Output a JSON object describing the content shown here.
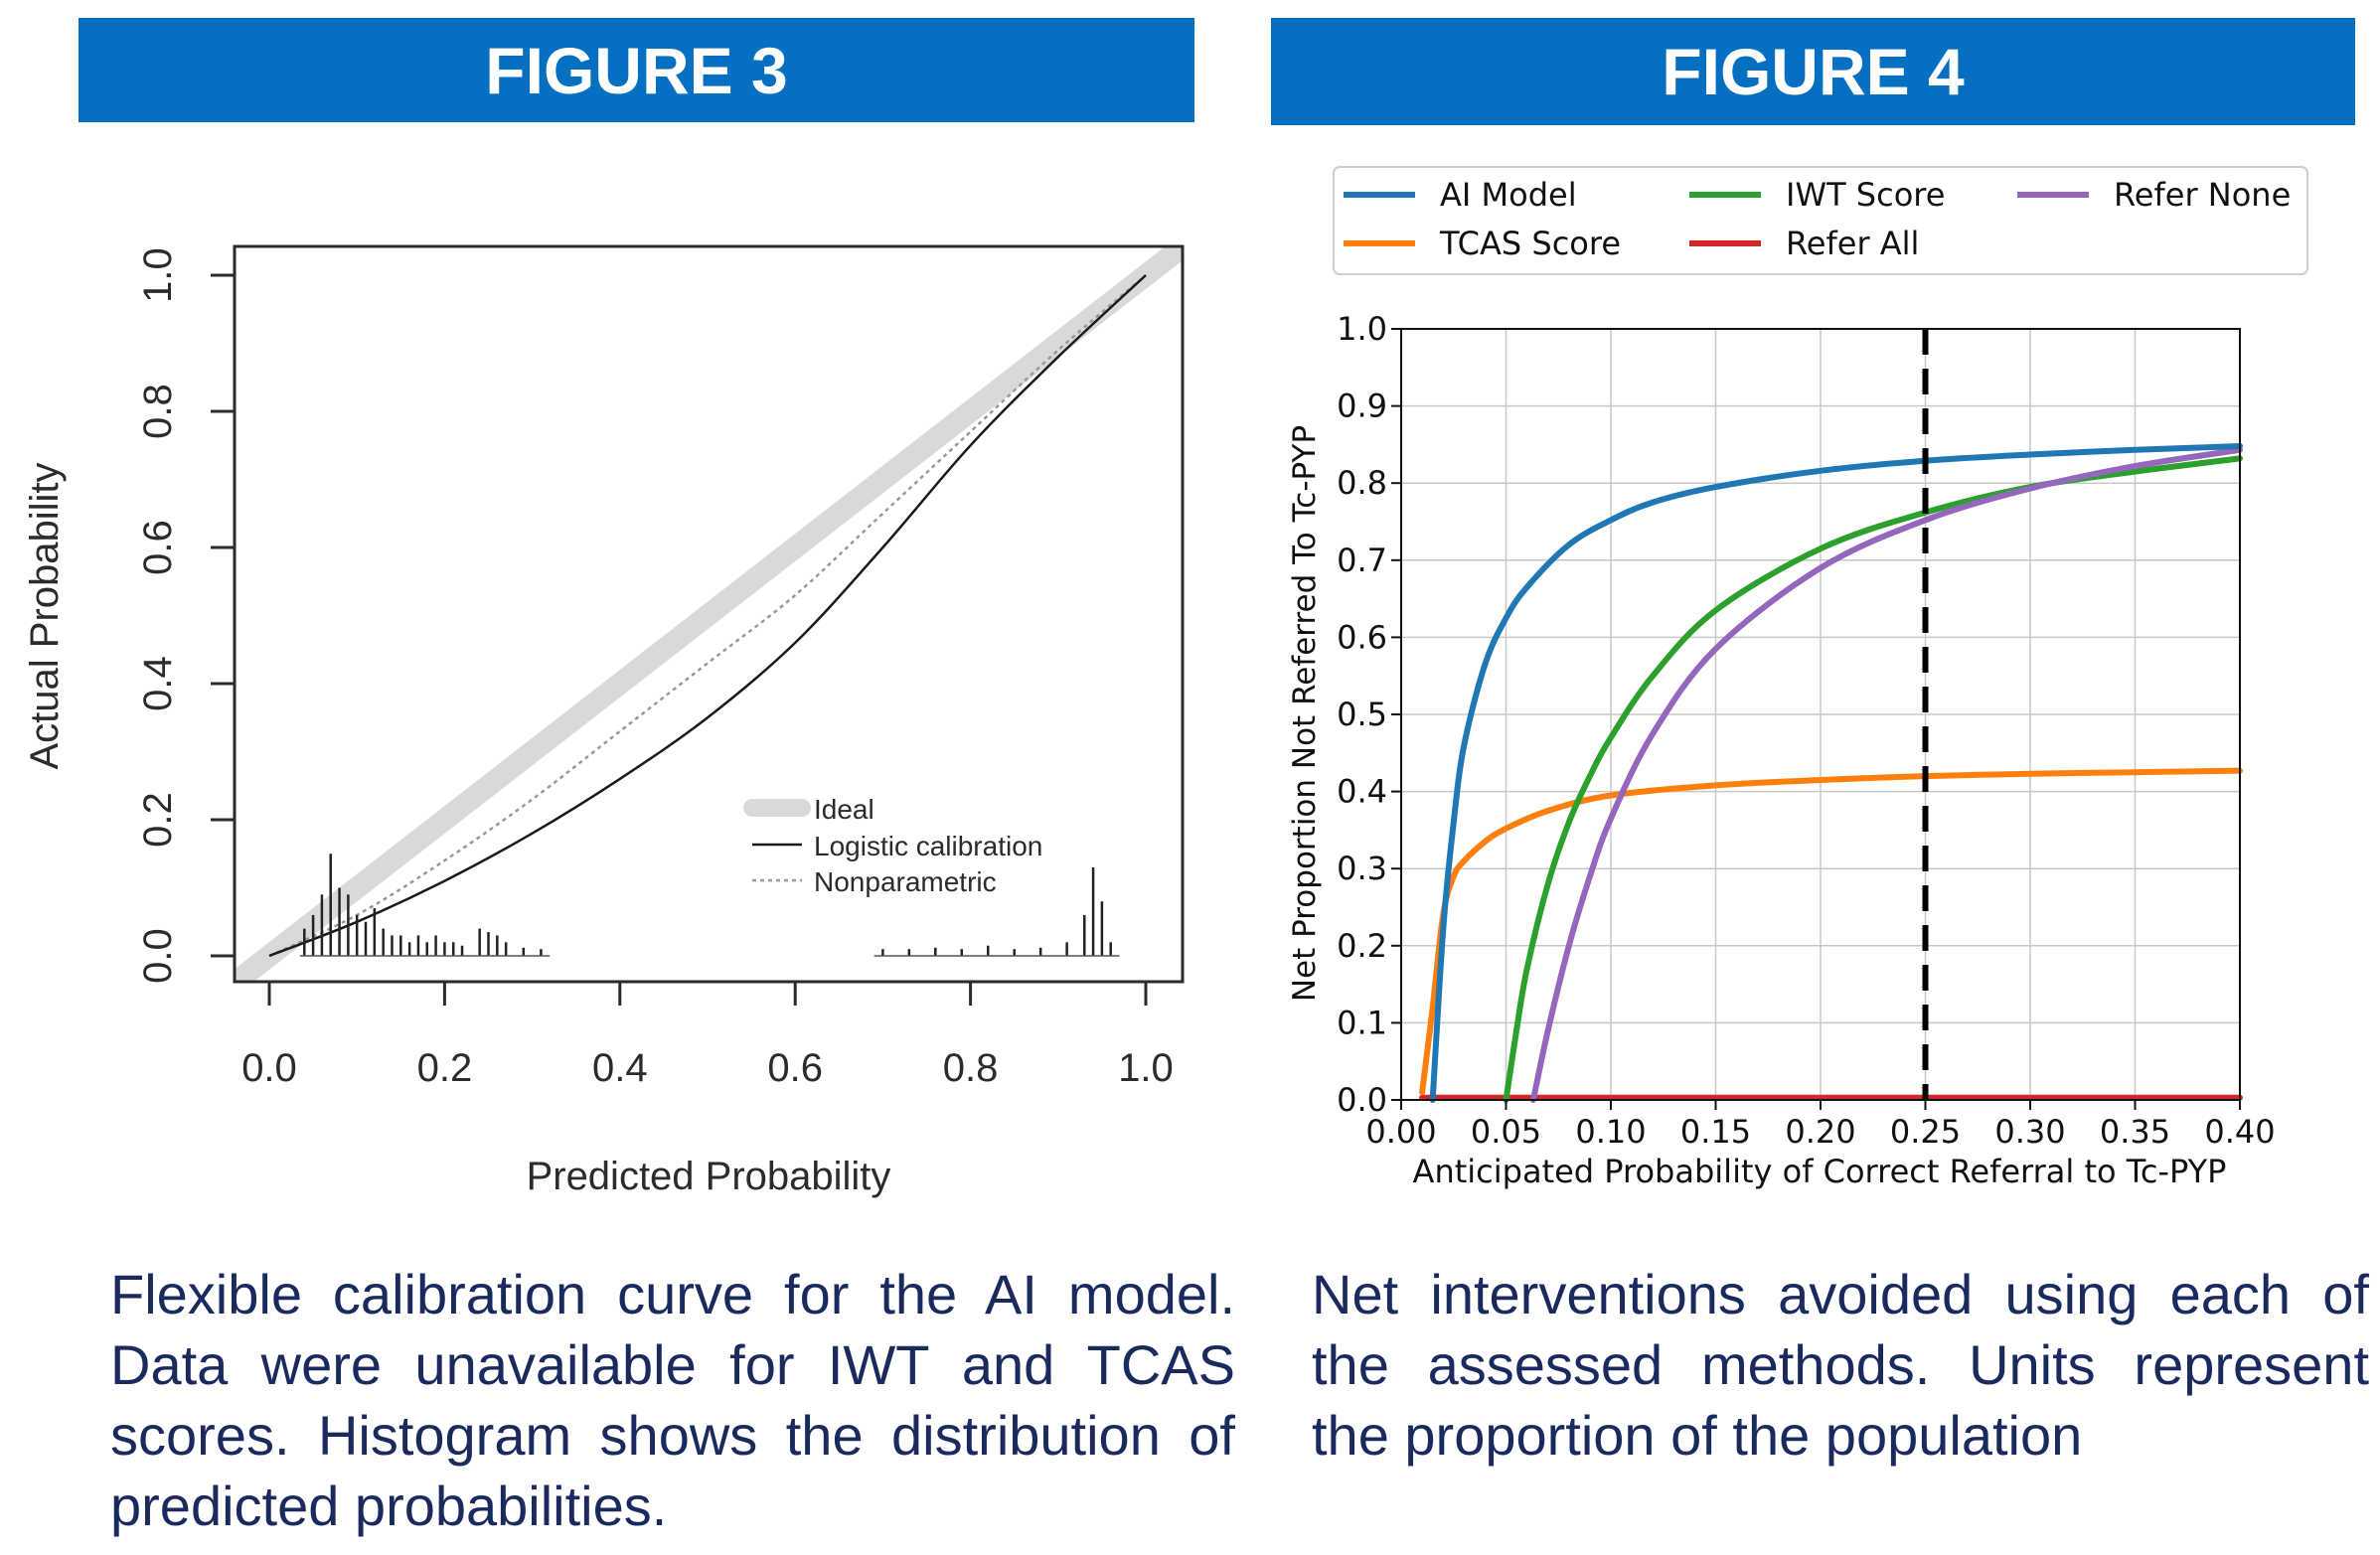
{
  "figure3": {
    "header": "FIGURE 3",
    "caption": "Flexible calibration curve for the AI model. Data were unavailable for IWT and TCAS scores. Histogram shows the distribution of predicted probabilities."
  },
  "figure4": {
    "header": "FIGURE 4",
    "caption": "Net interventions avoided using each of the assessed methods. Units represent the proportion of the population"
  },
  "chart_data": [
    {
      "type": "line",
      "title": "",
      "xlabel": "Predicted Probability",
      "ylabel": "Actual Probability",
      "xlim": [
        -0.04,
        1.04
      ],
      "ylim": [
        -0.04,
        1.04
      ],
      "xticks": [
        "0.0",
        "0.2",
        "0.4",
        "0.6",
        "0.8",
        "1.0"
      ],
      "yticks": [
        "0.0",
        "0.2",
        "0.4",
        "0.6",
        "0.8",
        "1.0"
      ],
      "legend_position": "bottom-right",
      "legend": [
        "Ideal",
        "Logistic calibration",
        "Nonparametric"
      ],
      "colors": {
        "ideal": "#d9d9d9",
        "logistic": "#1a1a1a",
        "nonparametric": "#999999"
      },
      "series": [
        {
          "name": "Ideal",
          "x": [
            -0.04,
            1.04
          ],
          "y": [
            -0.04,
            1.04
          ]
        },
        {
          "name": "Logistic calibration",
          "x": [
            0.0,
            0.1,
            0.2,
            0.3,
            0.4,
            0.5,
            0.6,
            0.7,
            0.8,
            0.9,
            1.0
          ],
          "y": [
            0.0,
            0.05,
            0.11,
            0.18,
            0.26,
            0.35,
            0.46,
            0.6,
            0.75,
            0.88,
            1.0
          ]
        },
        {
          "name": "Nonparametric",
          "x": [
            0.0,
            0.1,
            0.2,
            0.3,
            0.4,
            0.5,
            0.6,
            0.7,
            0.8,
            0.9,
            1.0
          ],
          "y": [
            0.0,
            0.06,
            0.14,
            0.23,
            0.33,
            0.43,
            0.53,
            0.65,
            0.77,
            0.89,
            1.0
          ]
        }
      ],
      "histogram": {
        "x": [
          0.04,
          0.05,
          0.06,
          0.07,
          0.08,
          0.09,
          0.1,
          0.11,
          0.12,
          0.13,
          0.14,
          0.15,
          0.16,
          0.17,
          0.18,
          0.19,
          0.2,
          0.21,
          0.22,
          0.24,
          0.25,
          0.26,
          0.27,
          0.29,
          0.31,
          0.7,
          0.73,
          0.76,
          0.79,
          0.82,
          0.85,
          0.88,
          0.91,
          0.93,
          0.94,
          0.95,
          0.96
        ],
        "heights": [
          0.04,
          0.06,
          0.09,
          0.15,
          0.1,
          0.09,
          0.06,
          0.05,
          0.07,
          0.04,
          0.03,
          0.03,
          0.02,
          0.03,
          0.02,
          0.03,
          0.02,
          0.02,
          0.015,
          0.04,
          0.035,
          0.03,
          0.02,
          0.012,
          0.01,
          0.01,
          0.01,
          0.012,
          0.01,
          0.015,
          0.01,
          0.012,
          0.02,
          0.06,
          0.13,
          0.08,
          0.02
        ]
      }
    },
    {
      "type": "line",
      "title": "",
      "xlabel": "Anticipated Probability of Correct Referral to Tc-PYP",
      "ylabel": "Net Proportion Not Referred To Tc-PYP",
      "xlim": [
        0.0,
        0.4
      ],
      "ylim": [
        0.0,
        1.0
      ],
      "xticks": [
        "0.00",
        "0.05",
        "0.10",
        "0.15",
        "0.20",
        "0.25",
        "0.30",
        "0.35",
        "0.40"
      ],
      "yticks": [
        "0.0",
        "0.1",
        "0.2",
        "0.3",
        "0.4",
        "0.5",
        "0.6",
        "0.7",
        "0.8",
        "0.9",
        "1.0"
      ],
      "grid": true,
      "legend_position": "top",
      "vline": {
        "x": 0.25,
        "style": "dashed",
        "color": "#000000"
      },
      "series": [
        {
          "name": "AI Model",
          "color": "#1f77b4",
          "x": [
            0.015,
            0.02,
            0.025,
            0.03,
            0.04,
            0.05,
            0.06,
            0.08,
            0.1,
            0.12,
            0.15,
            0.2,
            0.25,
            0.3,
            0.35,
            0.4
          ],
          "y": [
            0.0,
            0.22,
            0.36,
            0.46,
            0.565,
            0.625,
            0.665,
            0.72,
            0.752,
            0.775,
            0.795,
            0.816,
            0.829,
            0.837,
            0.843,
            0.848
          ]
        },
        {
          "name": "IWT Score",
          "color": "#2ca02c",
          "x": [
            0.05,
            0.055,
            0.06,
            0.07,
            0.08,
            0.09,
            0.1,
            0.12,
            0.15,
            0.2,
            0.25,
            0.3,
            0.35,
            0.4
          ],
          "y": [
            0.0,
            0.09,
            0.17,
            0.28,
            0.36,
            0.42,
            0.47,
            0.55,
            0.635,
            0.715,
            0.762,
            0.795,
            0.815,
            0.832
          ]
        },
        {
          "name": "Refer None",
          "color": "#9467bd",
          "x": [
            0.063,
            0.07,
            0.08,
            0.09,
            0.1,
            0.12,
            0.15,
            0.2,
            0.25,
            0.3,
            0.35,
            0.4
          ],
          "y": [
            0.0,
            0.09,
            0.2,
            0.29,
            0.365,
            0.475,
            0.585,
            0.69,
            0.752,
            0.793,
            0.822,
            0.843
          ]
        },
        {
          "name": "TCAS Score",
          "color": "#ff7f0e",
          "x": [
            0.01,
            0.015,
            0.02,
            0.025,
            0.03,
            0.04,
            0.05,
            0.07,
            0.1,
            0.15,
            0.2,
            0.25,
            0.3,
            0.35,
            0.4
          ],
          "y": [
            0.01,
            0.12,
            0.24,
            0.29,
            0.31,
            0.335,
            0.352,
            0.375,
            0.395,
            0.408,
            0.415,
            0.42,
            0.423,
            0.425,
            0.427
          ]
        },
        {
          "name": "Refer All",
          "color": "#d62728",
          "x": [
            0.01,
            0.4
          ],
          "y": [
            0.003,
            0.003
          ]
        }
      ]
    }
  ]
}
